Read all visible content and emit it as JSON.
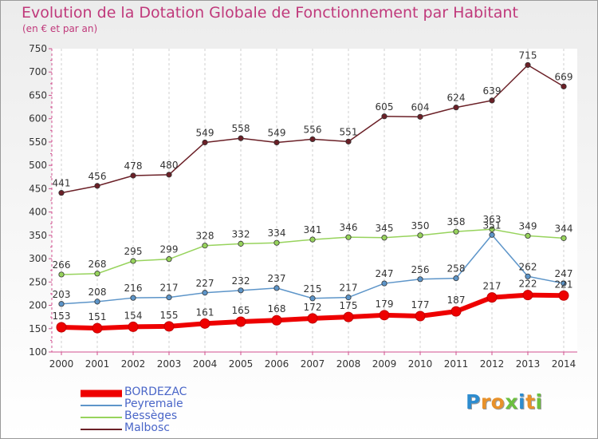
{
  "title": "Evolution de la Dotation Globale de Fonctionnement par Habitant",
  "subtitle": "(en € et par an)",
  "brand": {
    "text": "Proxiti",
    "letter_colors": [
      "#2d8ccf",
      "#e8912a",
      "#e8912a",
      "#6cbf3f",
      "#2d8ccf",
      "#e8912a",
      "#6cbf3f"
    ]
  },
  "chart_data": {
    "type": "line",
    "title": "Evolution de la Dotation Globale de Fonctionnement par Habitant",
    "subtitle": "(en € et par an)",
    "xlabel": "",
    "ylabel": "",
    "x": [
      "2000",
      "2001",
      "2002",
      "2003",
      "2004",
      "2005",
      "2006",
      "2007",
      "2008",
      "2009",
      "2010",
      "2011",
      "2012",
      "2013",
      "2014"
    ],
    "ylim": [
      100,
      750
    ],
    "yticks": [
      100,
      150,
      200,
      250,
      300,
      350,
      400,
      450,
      500,
      550,
      600,
      650,
      700,
      750
    ],
    "grid": "vertical dashed",
    "legend_position": "bottom-left",
    "series": [
      {
        "name": "BORDEZAC",
        "color": "#ee0000",
        "values": [
          153,
          151,
          154,
          155,
          161,
          165,
          168,
          172,
          175,
          179,
          177,
          187,
          217,
          222,
          221
        ]
      },
      {
        "name": "Peyremale",
        "color": "#5d95c9",
        "values": [
          203,
          208,
          216,
          217,
          227,
          232,
          237,
          215,
          217,
          247,
          256,
          258,
          351,
          262,
          247
        ]
      },
      {
        "name": "Bessèges",
        "color": "#97d35c",
        "values": [
          266,
          268,
          295,
          299,
          328,
          332,
          334,
          341,
          346,
          345,
          350,
          358,
          363,
          349,
          344
        ]
      },
      {
        "name": "Malbosc",
        "color": "#6b2027",
        "values": [
          441,
          456,
          478,
          480,
          549,
          558,
          549,
          556,
          551,
          605,
          604,
          624,
          639,
          715,
          669
        ]
      }
    ]
  }
}
